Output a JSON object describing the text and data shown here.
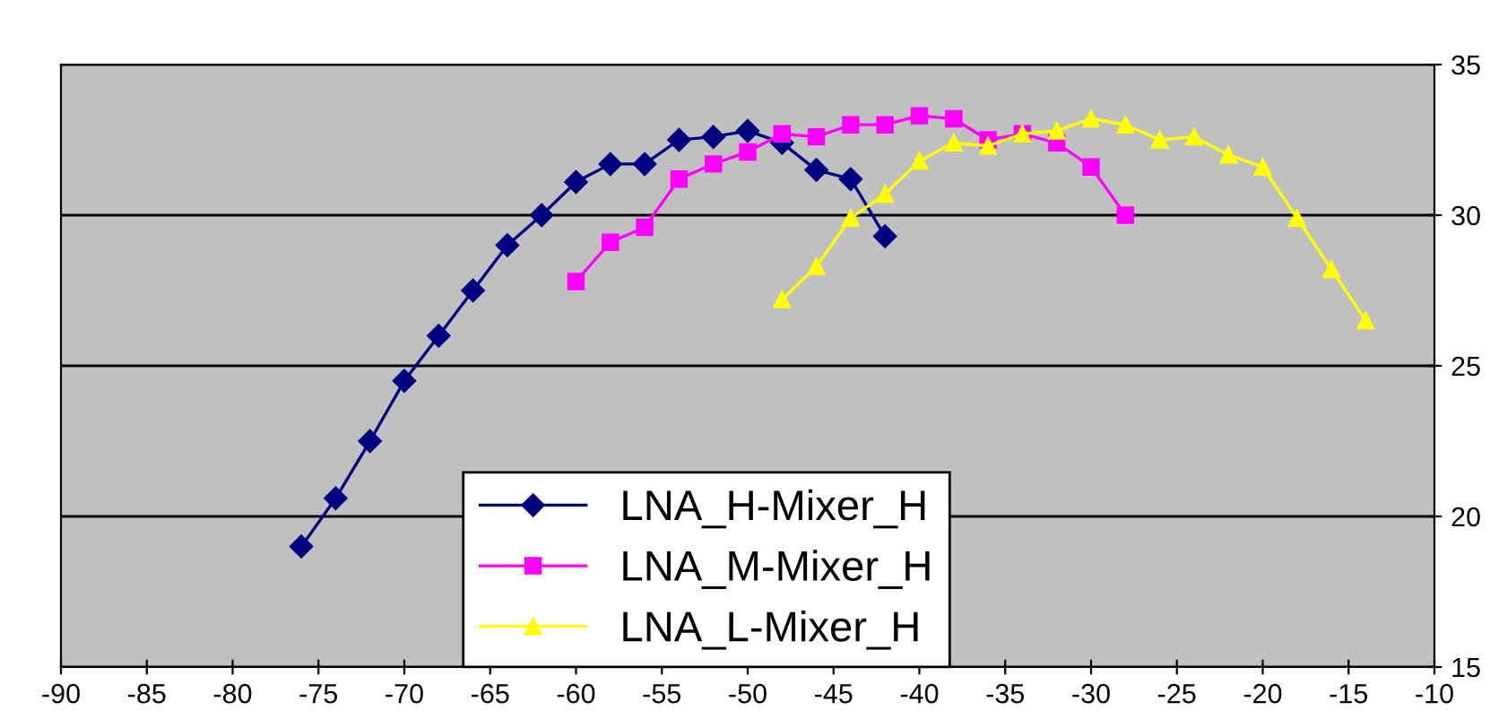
{
  "chart_data": {
    "type": "line",
    "grid": "y",
    "legend": "bottom",
    "xlim": [
      -90,
      -10
    ],
    "xticks": [
      -90,
      -85,
      -80,
      -75,
      -70,
      -65,
      -60,
      -55,
      -50,
      -45,
      -40,
      -35,
      -30,
      -25,
      -20,
      -15,
      -10
    ],
    "ylim": [
      15,
      35
    ],
    "yticks": [
      15,
      20,
      25,
      30,
      35
    ],
    "series": [
      {
        "name": "LNA_H-Mixer_H",
        "color": "#000080",
        "marker": "diamond",
        "x": [
          -76,
          -74,
          -72,
          -70,
          -68,
          -66,
          -64,
          -62,
          -60,
          -58,
          -56,
          -54,
          -52,
          -50,
          -48,
          -46,
          -44,
          -42
        ],
        "values": [
          19.0,
          20.6,
          22.5,
          24.5,
          26.0,
          27.5,
          29.0,
          30.0,
          31.1,
          31.7,
          31.7,
          32.5,
          32.6,
          32.8,
          32.4,
          31.5,
          31.2,
          29.3
        ]
      },
      {
        "name": "LNA_M-Mixer_H",
        "color": "#ff00ff",
        "marker": "square",
        "x": [
          -60,
          -58,
          -56,
          -54,
          -52,
          -50,
          -48,
          -46,
          -44,
          -42,
          -40,
          -38,
          -36,
          -34,
          -32,
          -30,
          -28
        ],
        "values": [
          27.8,
          29.1,
          29.6,
          31.2,
          31.7,
          32.1,
          32.7,
          32.6,
          33.0,
          33.0,
          33.3,
          33.2,
          32.5,
          32.7,
          32.4,
          31.6,
          30.0
        ]
      },
      {
        "name": "LNA_L-Mixer_H",
        "color": "#ffff00",
        "marker": "triangle",
        "x": [
          -48,
          -46,
          -44,
          -42,
          -40,
          -38,
          -36,
          -34,
          -32,
          -30,
          -28,
          -26,
          -24,
          -22,
          -20,
          -18,
          -16,
          -14
        ],
        "values": [
          27.2,
          28.3,
          29.9,
          30.7,
          31.8,
          32.4,
          32.3,
          32.7,
          32.8,
          33.2,
          33.0,
          32.5,
          32.6,
          32.0,
          31.6,
          29.9,
          28.2,
          26.5
        ]
      }
    ]
  }
}
